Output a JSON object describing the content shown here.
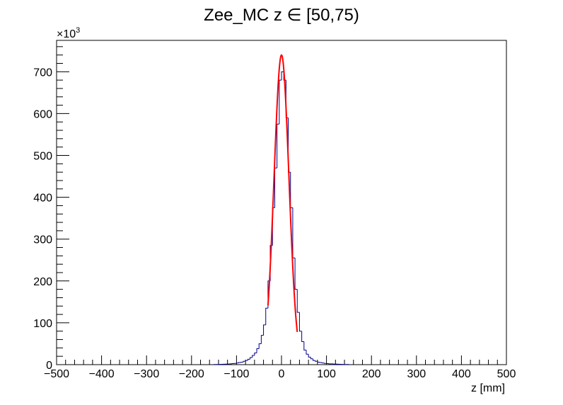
{
  "chart_data": {
    "type": "histogram",
    "title": "Zee_MC z ∈ [50,75)",
    "xlabel": "z [mm]",
    "ylabel": "",
    "y_multiplier_label": "×10",
    "y_multiplier_exponent": "3",
    "xlim": [
      -500,
      500
    ],
    "ylim": [
      0,
      775
    ],
    "y_unit_scale": 1000,
    "x_ticks": [
      -500,
      -400,
      -300,
      -200,
      -100,
      0,
      100,
      200,
      300,
      400,
      500
    ],
    "x_tick_labels": [
      "−500",
      "−400",
      "−300",
      "−200",
      "−100",
      "0",
      "100",
      "200",
      "300",
      "400",
      "500"
    ],
    "y_ticks": [
      0,
      100,
      200,
      300,
      400,
      500,
      600,
      700
    ],
    "y_tick_labels": [
      "0",
      "100",
      "200",
      "300",
      "400",
      "500",
      "600",
      "700"
    ],
    "bin_width": 5,
    "histogram": {
      "color": "#00008b",
      "bins": [
        {
          "x": -150,
          "y": 0.5
        },
        {
          "x": -145,
          "y": 0.5
        },
        {
          "x": -140,
          "y": 0.6
        },
        {
          "x": -135,
          "y": 0.8
        },
        {
          "x": -130,
          "y": 1.0
        },
        {
          "x": -125,
          "y": 1.2
        },
        {
          "x": -120,
          "y": 1.5
        },
        {
          "x": -115,
          "y": 2.0
        },
        {
          "x": -110,
          "y": 2.5
        },
        {
          "x": -105,
          "y": 3.0
        },
        {
          "x": -100,
          "y": 4.0
        },
        {
          "x": -95,
          "y": 5.0
        },
        {
          "x": -90,
          "y": 6.0
        },
        {
          "x": -85,
          "y": 8.0
        },
        {
          "x": -80,
          "y": 10
        },
        {
          "x": -75,
          "y": 13
        },
        {
          "x": -70,
          "y": 17
        },
        {
          "x": -65,
          "y": 22
        },
        {
          "x": -60,
          "y": 28
        },
        {
          "x": -55,
          "y": 38
        },
        {
          "x": -50,
          "y": 50
        },
        {
          "x": -45,
          "y": 70
        },
        {
          "x": -40,
          "y": 95
        },
        {
          "x": -35,
          "y": 135
        },
        {
          "x": -30,
          "y": 200
        },
        {
          "x": -25,
          "y": 285
        },
        {
          "x": -20,
          "y": 375
        },
        {
          "x": -15,
          "y": 470
        },
        {
          "x": -10,
          "y": 575
        },
        {
          "x": -5,
          "y": 680
        },
        {
          "x": 0,
          "y": 700
        },
        {
          "x": 5,
          "y": 680
        },
        {
          "x": 10,
          "y": 590
        },
        {
          "x": 15,
          "y": 460
        },
        {
          "x": 20,
          "y": 375
        },
        {
          "x": 25,
          "y": 255
        },
        {
          "x": 30,
          "y": 180
        },
        {
          "x": 35,
          "y": 125
        },
        {
          "x": 40,
          "y": 80
        },
        {
          "x": 45,
          "y": 55
        },
        {
          "x": 50,
          "y": 35
        },
        {
          "x": 55,
          "y": 25
        },
        {
          "x": 60,
          "y": 18
        },
        {
          "x": 65,
          "y": 14
        },
        {
          "x": 70,
          "y": 10
        },
        {
          "x": 75,
          "y": 8
        },
        {
          "x": 80,
          "y": 6
        },
        {
          "x": 85,
          "y": 5
        },
        {
          "x": 90,
          "y": 4
        },
        {
          "x": 95,
          "y": 3
        },
        {
          "x": 100,
          "y": 2.5
        },
        {
          "x": 105,
          "y": 2.0
        },
        {
          "x": 110,
          "y": 1.8
        },
        {
          "x": 115,
          "y": 1.5
        },
        {
          "x": 120,
          "y": 1.2
        },
        {
          "x": 125,
          "y": 1.0
        },
        {
          "x": 130,
          "y": 0.8
        },
        {
          "x": 135,
          "y": 0.6
        },
        {
          "x": 140,
          "y": 0.5
        },
        {
          "x": 145,
          "y": 0.5
        }
      ]
    },
    "fit": {
      "color": "#ff0000",
      "function": "gaussian",
      "amplitude": 740,
      "mean": 0,
      "sigma": 16.5,
      "range": [
        -30,
        35
      ]
    }
  }
}
